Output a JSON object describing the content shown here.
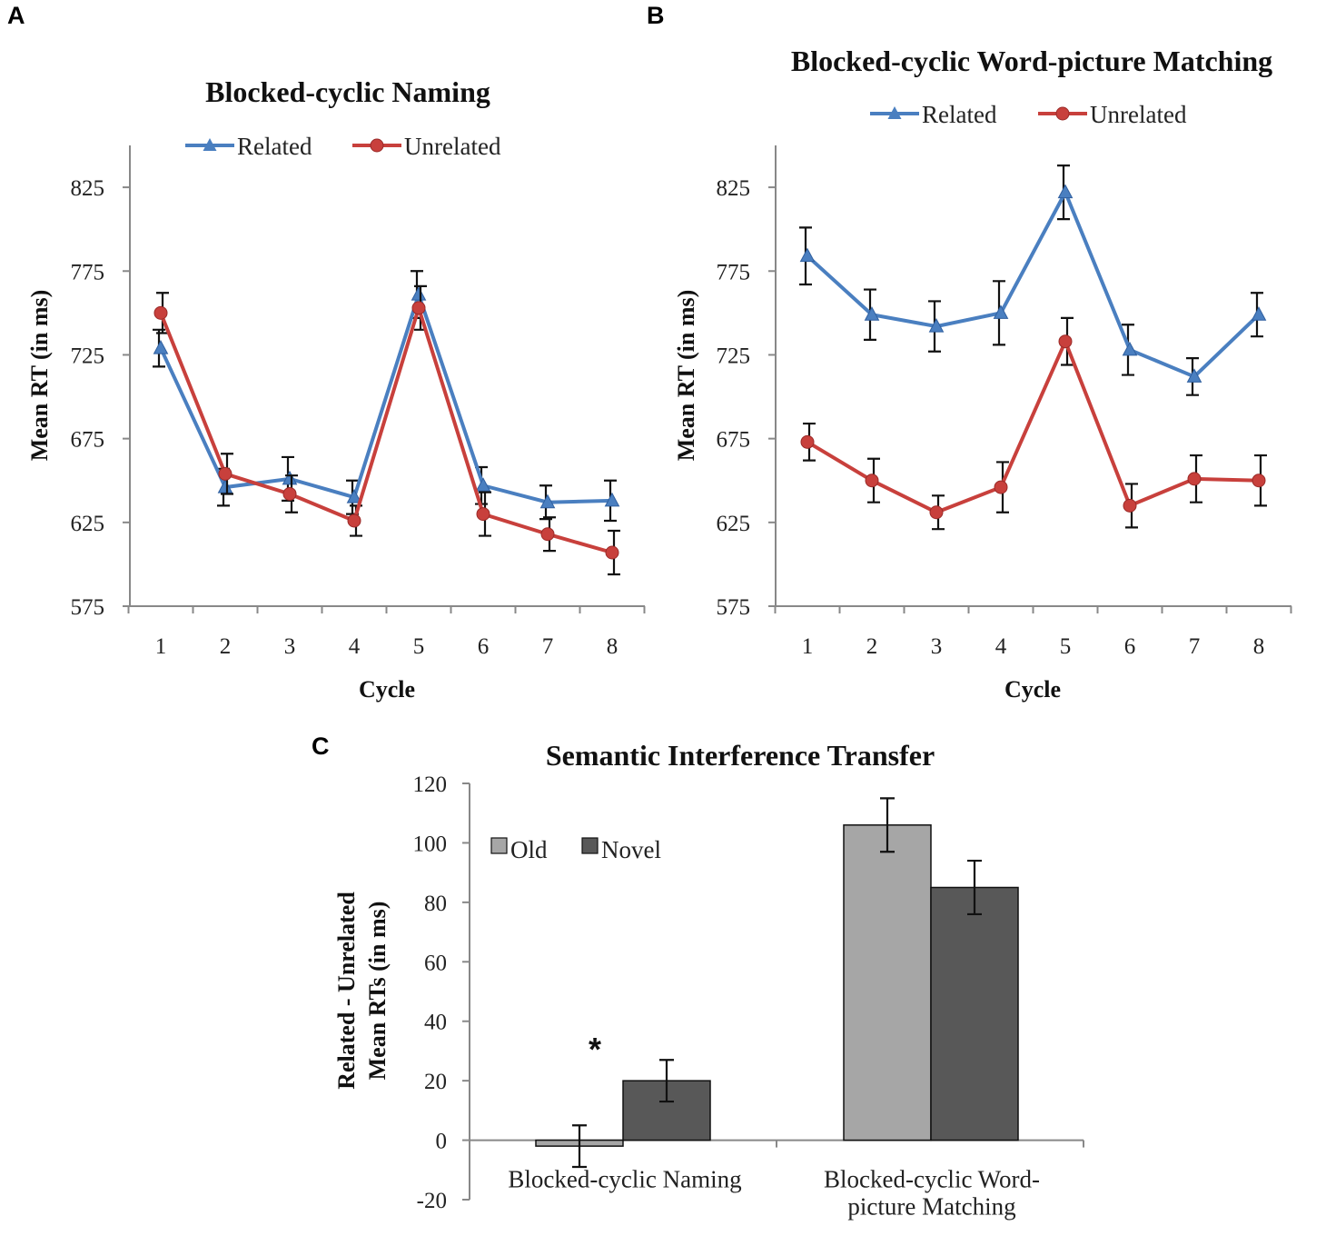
{
  "panels": {
    "A": {
      "letter": "A"
    },
    "B": {
      "letter": "B"
    },
    "C": {
      "letter": "C"
    }
  },
  "colors": {
    "related": "#4a7fc0",
    "unrelated": "#c8403c",
    "old": "#a6a6a6",
    "novel": "#585858"
  },
  "chart_data": [
    {
      "id": "A",
      "type": "line",
      "title": "Blocked-cyclic Naming",
      "xlabel": "Cycle",
      "ylabel": "Mean RT (in ms)",
      "categories": [
        "1",
        "2",
        "3",
        "4",
        "5",
        "6",
        "7",
        "8"
      ],
      "yticks": [
        575,
        625,
        675,
        725,
        775,
        825
      ],
      "ylim": [
        575,
        850
      ],
      "legend": [
        "Related",
        "Unrelated"
      ],
      "series": [
        {
          "name": "Related",
          "marker": "triangle",
          "values": [
            729,
            646,
            651,
            640,
            761,
            647,
            637,
            638
          ],
          "errors": [
            11,
            11,
            13,
            10,
            14,
            11,
            10,
            12
          ]
        },
        {
          "name": "Unrelated",
          "marker": "circle",
          "values": [
            750,
            654,
            642,
            626,
            753,
            630,
            618,
            607
          ],
          "errors": [
            12,
            12,
            11,
            9,
            13,
            13,
            10,
            13
          ]
        }
      ]
    },
    {
      "id": "B",
      "type": "line",
      "title": "Blocked-cyclic Word-picture Matching",
      "xlabel": "Cycle",
      "ylabel": "Mean RT (in ms)",
      "categories": [
        "1",
        "2",
        "3",
        "4",
        "5",
        "6",
        "7",
        "8"
      ],
      "yticks": [
        575,
        625,
        675,
        725,
        775,
        825
      ],
      "ylim": [
        575,
        850
      ],
      "legend": [
        "Related",
        "Unrelated"
      ],
      "series": [
        {
          "name": "Related",
          "marker": "triangle",
          "values": [
            784,
            749,
            742,
            750,
            822,
            728,
            712,
            749
          ],
          "errors": [
            17,
            15,
            15,
            19,
            16,
            15,
            11,
            13
          ]
        },
        {
          "name": "Unrelated",
          "marker": "circle",
          "values": [
            673,
            650,
            631,
            646,
            733,
            635,
            651,
            650
          ],
          "errors": [
            11,
            13,
            10,
            15,
            14,
            13,
            14,
            15
          ]
        }
      ]
    },
    {
      "id": "C",
      "type": "bar",
      "title": "Semantic Interference Transfer",
      "ylabel_lines": [
        "Related - Unrelated",
        "Mean RTs (in ms)"
      ],
      "categories": [
        [
          "Blocked-cyclic Naming"
        ],
        [
          "Blocked-cyclic Word-",
          "picture Matching"
        ]
      ],
      "yticks": [
        -20,
        0,
        20,
        40,
        60,
        80,
        100,
        120
      ],
      "ylim": [
        -20,
        120
      ],
      "legend": [
        "Old",
        "Novel"
      ],
      "series": [
        {
          "name": "Old",
          "values": [
            -2,
            106
          ],
          "errors": [
            7,
            9
          ]
        },
        {
          "name": "Novel",
          "values": [
            20,
            85
          ],
          "errors": [
            7,
            9
          ]
        }
      ],
      "annotation": "*"
    }
  ]
}
